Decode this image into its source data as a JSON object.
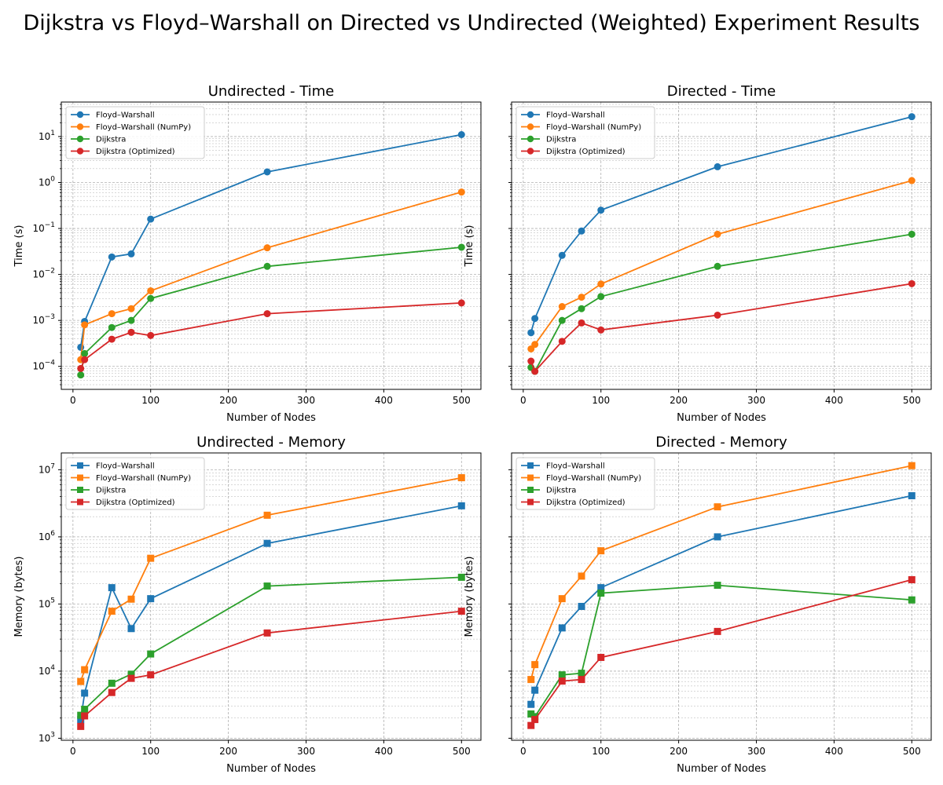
{
  "figure": {
    "title": "Dijkstra vs Floyd–Warshall on Directed vs Undirected (Weighted) Experiment Results"
  },
  "colors": {
    "Floyd–Warshall": "#1f77b4",
    "Floyd–Warshall (NumPy)": "#ff7f0e",
    "Dijkstra": "#2ca02c",
    "Dijkstra (Optimized)": "#d62728"
  },
  "chart_data": [
    {
      "type": "line",
      "title": "Undirected - Time",
      "xlabel": "Number of Nodes",
      "ylabel": "Time (s)",
      "yscale": "log",
      "marker": "circle",
      "xlim": [
        -15,
        525
      ],
      "ylim_exp": [
        -4.5,
        1.75
      ],
      "xticks": [
        0,
        100,
        200,
        300,
        400,
        500
      ],
      "yticks": [
        {
          "exp": -4,
          "label": "10"
        },
        {
          "exp": -3,
          "label": "10"
        },
        {
          "exp": -2,
          "label": "10"
        },
        {
          "exp": -1,
          "label": "10"
        },
        {
          "exp": 0,
          "label": "10"
        },
        {
          "exp": 1,
          "label": "10"
        }
      ],
      "grid": true,
      "legend": "top-left",
      "x": [
        10,
        15,
        50,
        75,
        100,
        250,
        500
      ],
      "series": [
        {
          "name": "Floyd–Warshall",
          "values": [
            0.00026,
            0.00095,
            0.024,
            0.028,
            0.16,
            1.7,
            11
          ]
        },
        {
          "name": "Floyd–Warshall (NumPy)",
          "values": [
            0.00014,
            0.0008,
            0.0014,
            0.0018,
            0.0044,
            0.038,
            0.62
          ]
        },
        {
          "name": "Dijkstra",
          "values": [
            6.5e-05,
            0.00019,
            0.0007,
            0.001,
            0.003,
            0.015,
            0.039
          ]
        },
        {
          "name": "Dijkstra (Optimized)",
          "values": [
            9e-05,
            0.00014,
            0.00039,
            0.00055,
            0.00047,
            0.0014,
            0.0024
          ]
        }
      ]
    },
    {
      "type": "line",
      "title": "Directed - Time",
      "xlabel": "Number of Nodes",
      "ylabel": "Time (s)",
      "yscale": "log",
      "marker": "circle",
      "xlim": [
        -15,
        525
      ],
      "ylim_exp": [
        -4.5,
        1.75
      ],
      "xticks": [
        0,
        100,
        200,
        300,
        400,
        500
      ],
      "yticks": [
        {
          "exp": -4,
          "label": "10"
        },
        {
          "exp": -3,
          "label": "10"
        },
        {
          "exp": -2,
          "label": "10"
        },
        {
          "exp": -1,
          "label": "10"
        },
        {
          "exp": 0,
          "label": "10"
        },
        {
          "exp": 1,
          "label": "10"
        }
      ],
      "grid": true,
      "legend": "top-left",
      "x": [
        10,
        15,
        50,
        75,
        100,
        250,
        500
      ],
      "series": [
        {
          "name": "Floyd–Warshall",
          "values": [
            0.00054,
            0.0011,
            0.026,
            0.088,
            0.25,
            2.2,
            27
          ]
        },
        {
          "name": "Floyd–Warshall (NumPy)",
          "values": [
            0.00024,
            0.0003,
            0.002,
            0.0032,
            0.0062,
            0.075,
            1.1
          ]
        },
        {
          "name": "Dijkstra",
          "values": [
            9.5e-05,
            7.8e-05,
            0.001,
            0.0018,
            0.0033,
            0.015,
            0.075
          ]
        },
        {
          "name": "Dijkstra (Optimized)",
          "values": [
            0.00013,
            7.8e-05,
            0.00035,
            0.00088,
            0.00062,
            0.0013,
            0.0063
          ]
        }
      ]
    },
    {
      "type": "line",
      "title": "Undirected - Memory",
      "xlabel": "Number of Nodes",
      "ylabel": "Memory (bytes)",
      "yscale": "log",
      "marker": "square",
      "xlim": [
        -15,
        525
      ],
      "ylim_exp": [
        2.97,
        7.25
      ],
      "xticks": [
        0,
        100,
        200,
        300,
        400,
        500
      ],
      "yticks": [
        {
          "exp": 3,
          "label": "10"
        },
        {
          "exp": 4,
          "label": "10"
        },
        {
          "exp": 5,
          "label": "10"
        },
        {
          "exp": 6,
          "label": "10"
        },
        {
          "exp": 7,
          "label": "10"
        }
      ],
      "grid": true,
      "legend": "top-left",
      "x": [
        10,
        15,
        50,
        75,
        100,
        250,
        500
      ],
      "series": [
        {
          "name": "Floyd–Warshall",
          "values": [
            1900,
            4700,
            175000,
            43000,
            120000,
            800000,
            2900000
          ]
        },
        {
          "name": "Floyd–Warshall (NumPy)",
          "values": [
            7000,
            10500,
            78000,
            118000,
            480000,
            2100000,
            7600000
          ]
        },
        {
          "name": "Dijkstra",
          "values": [
            2200,
            2700,
            6600,
            9000,
            18000,
            185000,
            250000
          ]
        },
        {
          "name": "Dijkstra (Optimized)",
          "values": [
            1500,
            2150,
            4800,
            7800,
            8800,
            37000,
            78000
          ]
        }
      ]
    },
    {
      "type": "line",
      "title": "Directed - Memory",
      "xlabel": "Number of Nodes",
      "ylabel": "Memory (bytes)",
      "yscale": "log",
      "marker": "square",
      "xlim": [
        -15,
        525
      ],
      "ylim_exp": [
        2.97,
        7.25
      ],
      "xticks": [
        0,
        100,
        200,
        300,
        400,
        500
      ],
      "yticks": [
        {
          "exp": 3,
          "label": "10"
        },
        {
          "exp": 4,
          "label": "10"
        },
        {
          "exp": 5,
          "label": "10"
        },
        {
          "exp": 6,
          "label": "10"
        },
        {
          "exp": 7,
          "label": "10"
        }
      ],
      "grid": true,
      "legend": "top-left",
      "x": [
        10,
        15,
        50,
        75,
        100,
        250,
        500
      ],
      "series": [
        {
          "name": "Floyd–Warshall",
          "values": [
            3200,
            5200,
            44000,
            92000,
            175000,
            1000000,
            4100000
          ]
        },
        {
          "name": "Floyd–Warshall (NumPy)",
          "values": [
            7500,
            12500,
            120000,
            260000,
            620000,
            2800000,
            11500000
          ]
        },
        {
          "name": "Dijkstra",
          "values": [
            2300,
            2100,
            8800,
            9300,
            145000,
            190000,
            115000
          ]
        },
        {
          "name": "Dijkstra (Optimized)",
          "values": [
            1550,
            1900,
            7100,
            7500,
            16000,
            39000,
            230000
          ]
        }
      ]
    }
  ]
}
